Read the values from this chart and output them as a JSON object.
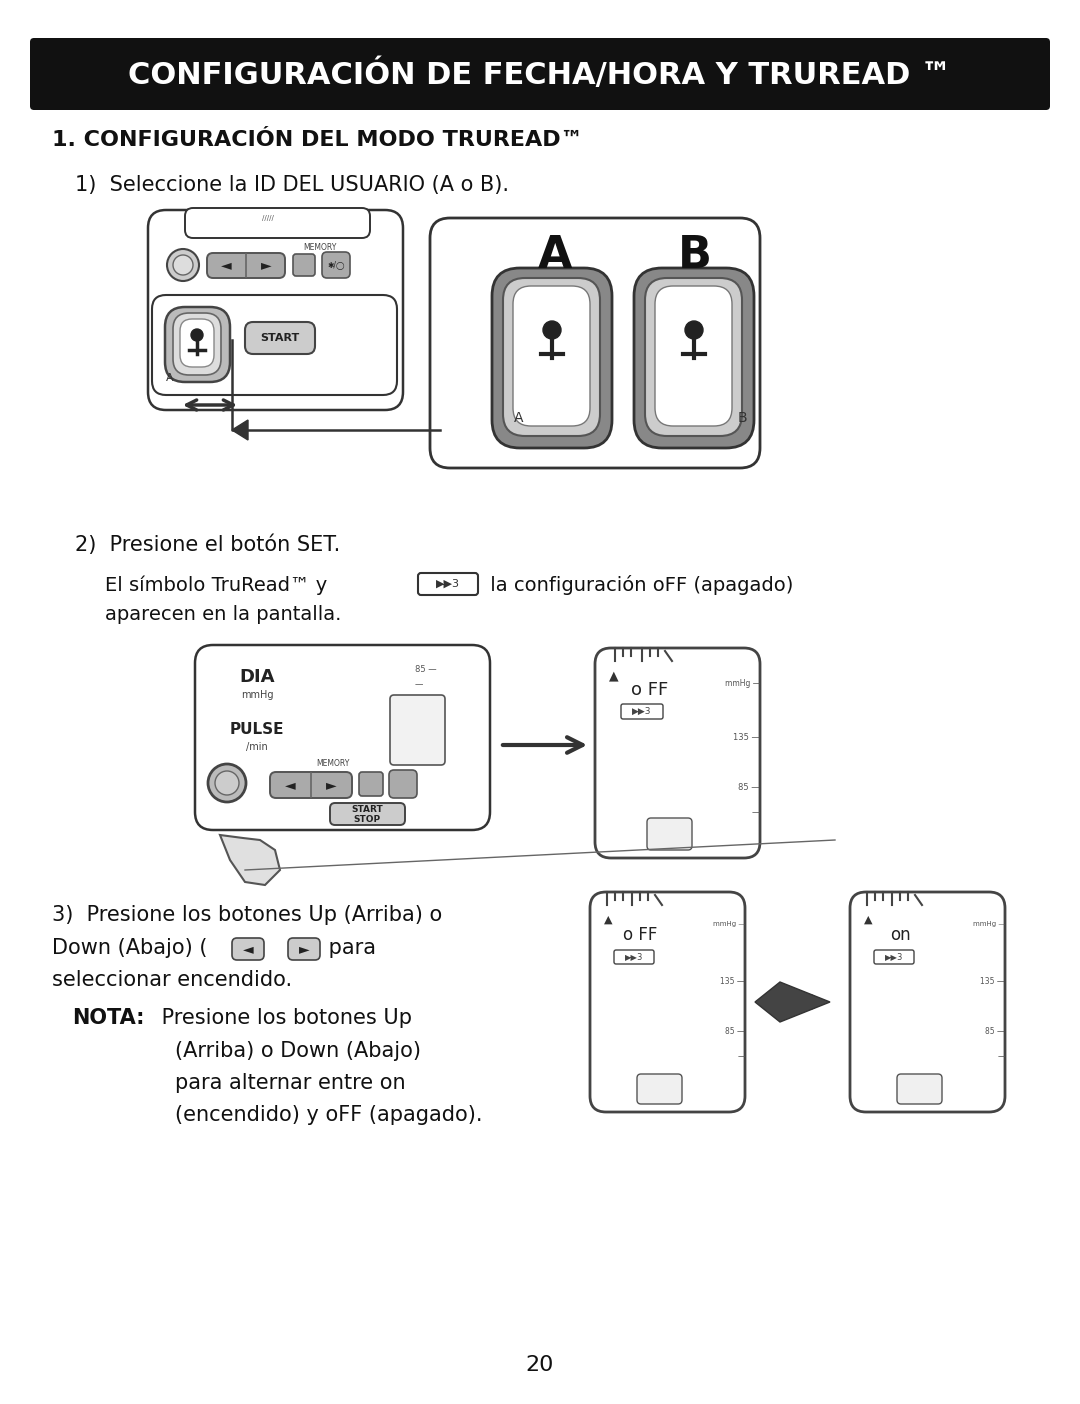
{
  "bg_color": "#ffffff",
  "header_bg": "#111111",
  "header_text": "CONFIGURACIÓN DE FECHA/HORA Y TRUREAD ™",
  "header_text_color": "#ffffff",
  "section1_title": "1. CONFIGURACIÓN DEL MODO TRUREAD™",
  "step1_text": "1)  Seleccione la ID DEL USUARIO (A o B).",
  "step2_text": "2)  Presione el botón SET.",
  "step2_sub1": "El símbolo TruRead™ y",
  "step2_sub2": " la configuración oFF (apagado)",
  "step2_sub3": "aparecen en la pantalla.",
  "step3_text1": "3)  Presione los botones Up (Arriba) o",
  "step3_text2": "Down (Abajo) (       /       )  para",
  "step3_text3": "seleccionar encendido.",
  "nota_bold": "NOTA:",
  "nota_text1": " Presione los botones Up",
  "nota_text2": "(Arriba) o Down (Abajo)",
  "nota_text3": "para alternar entre on",
  "nota_text4": "(encendido) y oFF (apagado).",
  "page_num": "20",
  "text_color": "#111111"
}
